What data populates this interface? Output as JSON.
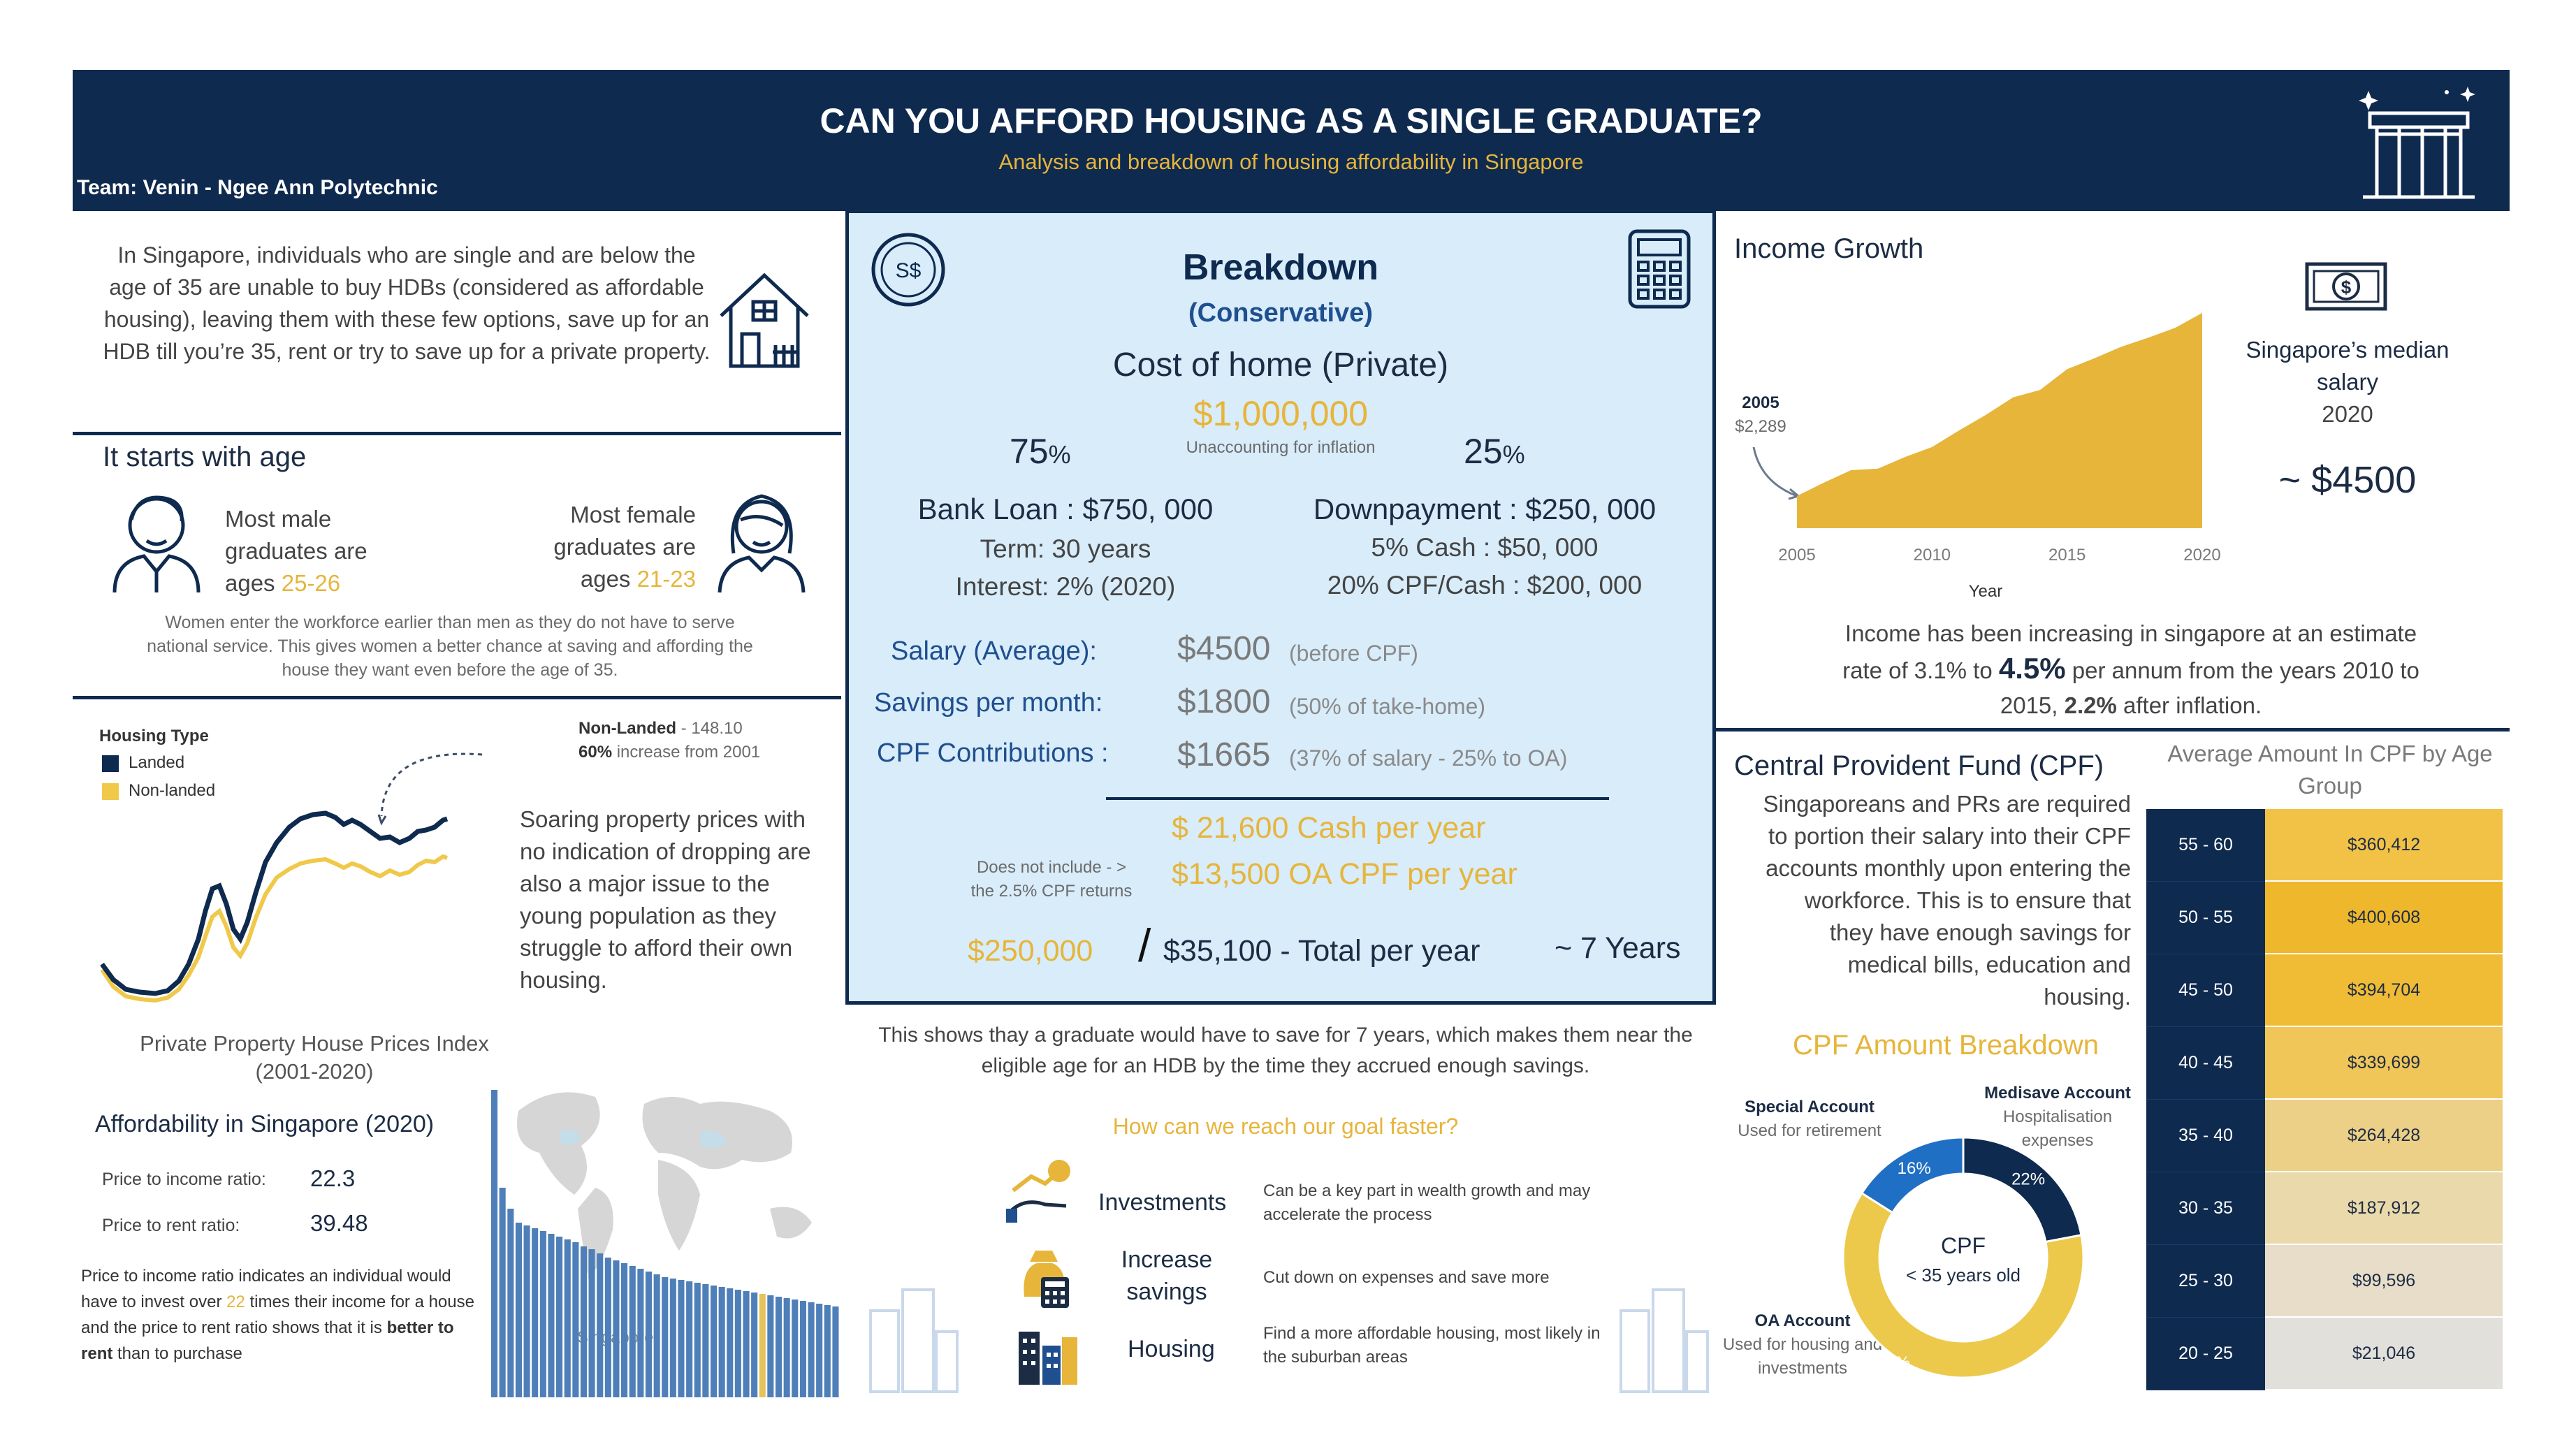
{
  "header": {
    "title": "CAN YOU AFFORD HOUSING AS A SINGLE GRADUATE?",
    "subtitle": "Analysis and breakdown of housing affordability in Singapore",
    "team": "Team: Venin - Ngee Ann Polytechnic"
  },
  "intro": {
    "text": "In Singapore, individuals who are single and are below the age of 35 are unable to buy HDBs (considered as affordable housing), leaving them with these few options, save up for an HDB till you’re 35, rent or try to save up for a private property."
  },
  "age": {
    "heading": "It starts with age",
    "male_line1": "Most male",
    "male_line2": "graduates are",
    "male_line3_prefix": "ages ",
    "male_ages": "25-26",
    "female_line1": "Most female",
    "female_line2": "graduates are",
    "female_line3_prefix": "ages ",
    "female_ages": "21-23",
    "note": "Women enter the workforce earlier than men as they do not have to serve national service. This gives women a better chance at saving and affording the house they want even before the age of 35."
  },
  "price_index": {
    "legend_title": "Housing Type",
    "legend_landed": "Landed",
    "legend_nonlanded": "Non-landed",
    "annotation_label": "Non-Landed",
    "annotation_value": "- 148.10",
    "annotation_pct": "60%",
    "annotation_rest": " increase from 2001",
    "text": "Soaring property prices with no indication of dropping are also a major issue to the young population as they struggle to afford their own housing.",
    "caption_line1": "Private Property House Prices Index",
    "caption_line2": "(2001-2020)",
    "colors": {
      "landed": "#0f2a4f",
      "nonlanded": "#f0c84a"
    }
  },
  "affordability": {
    "heading": "Affordability in Singapore (2020)",
    "pti_label": "Price to income ratio:",
    "pti_value": "22.3",
    "ptr_label": "Price to rent ratio:",
    "ptr_value": "39.48",
    "note_part1": "Price to income ratio indicates an individual would have to invest over ",
    "note_times": "22",
    "note_part2": " times their income for a house and the price to rent ratio shows that it is ",
    "note_bold": "better to rent",
    "note_part3": " than to purchase",
    "map_label": "Singapore"
  },
  "breakdown": {
    "title": "Breakdown",
    "subtitle": "(Conservative)",
    "cost_label": "Cost of home (Private)",
    "cost_value": "$1,000,000",
    "cost_note": "Unaccounting for inflation",
    "loan_pct": "75",
    "down_pct": "25",
    "pct_sign": "%",
    "loan_title": "Bank Loan : $750, 000",
    "loan_term": "Term: 30 years",
    "loan_interest": "Interest: 2% (2020)",
    "down_title": "Downpayment : $250, 000",
    "down_cash": "5% Cash : $50, 000",
    "down_cpf": "20% CPF/Cash : $200, 000",
    "salary_label": "Salary (Average):",
    "salary_value": "$4500",
    "salary_note": "(before CPF)",
    "savings_label": "Savings per month:",
    "savings_value": "$1800",
    "savings_note": "(50% of take-home)",
    "cpf_label": "CPF Contributions :",
    "cpf_value": "$1665",
    "cpf_note": "(37% of salary - 25% to OA)",
    "cash_year": "$ 21,600 Cash per year",
    "oa_year": "$13,500 OA CPF per year",
    "returns_note1": "Does not include - >",
    "returns_note2": "the 2.5% CPF returns",
    "target": "$250,000",
    "slash": "/",
    "total_value": "$35,100",
    "total_label": " - Total per year",
    "years": "~ 7 Years",
    "icon_currency": "S$"
  },
  "conclusion": {
    "text": "This shows thay a graduate would have to save for 7 years, which makes them near the eligible age for an HDB by the time they accrued enough savings.",
    "question": "How can we reach our goal faster?",
    "items": [
      {
        "label": "Investments",
        "desc": "Can be a key part in wealth growth and may accelerate the process"
      },
      {
        "label": "Increase savings",
        "desc": "Cut down on expenses and save more"
      },
      {
        "label": "Housing",
        "desc": "Find a more affordable housing, most likely in the suburban areas"
      }
    ]
  },
  "income": {
    "heading": "Income Growth",
    "start_year": "2005",
    "start_value": "$2,289",
    "x_label": "Year",
    "median_line1": "Singapore’s median",
    "median_line2": "salary",
    "median_year": "2020",
    "median_value": "~ $4500",
    "text_part1": "Income has been increasing in singapore at an estimate rate of 3.1% to ",
    "text_big": "4.5%",
    "text_part2": " per annum from the years 2010 to 2015, ",
    "text_bold": "2.2%",
    "text_part3": " after inflation."
  },
  "chart_data": {
    "type": "area",
    "x": [
      2005,
      2006,
      2007,
      2008,
      2009,
      2010,
      2011,
      2012,
      2013,
      2014,
      2015,
      2016,
      2017,
      2018,
      2019,
      2020
    ],
    "values": [
      2289,
      2450,
      2600,
      2620,
      2760,
      2880,
      3080,
      3270,
      3480,
      3570,
      3820,
      3950,
      4090,
      4200,
      4320,
      4500
    ],
    "xlabel": "Year",
    "xticks": [
      "2005",
      "2010",
      "2015",
      "2020"
    ],
    "color": "#e6b53a"
  },
  "cpf": {
    "heading": "Central Provident Fund (CPF)",
    "text": "Singaporeans and PRs are required to portion their salary into their CPF accounts monthly upon entering the workforce. This is to ensure that they have enough savings for medical bills, education and housing.",
    "breakdown_heading": "CPF Amount Breakdown",
    "donut_center1": "CPF",
    "donut_center2": "< 35 years old",
    "segments": [
      {
        "name": "Medisave Account",
        "pct": 22,
        "label": "22%",
        "desc": "Hospitalisation expenses",
        "color": "#0f2a4f"
      },
      {
        "name": "OA Account",
        "pct": 62,
        "label": "62%",
        "desc": "Used for housing and investments",
        "color": "#ecc94b"
      },
      {
        "name": "Special Account",
        "pct": 16,
        "label": "16%",
        "desc": "Used for retirement",
        "color": "#1f6fc4"
      }
    ]
  },
  "cpf_table": {
    "heading": "Average Amount In CPF by Age Group",
    "rows": [
      {
        "age": "55 - 60",
        "amount": "$360,412",
        "color": "#f2c247"
      },
      {
        "age": "50 - 55",
        "amount": "$400,608",
        "color": "#efb72b"
      },
      {
        "age": "45 - 50",
        "amount": "$394,704",
        "color": "#f0bb35"
      },
      {
        "age": "40 - 45",
        "amount": "$339,699",
        "color": "#f1c659"
      },
      {
        "age": "35 - 40",
        "amount": "$264,428",
        "color": "#ecd087"
      },
      {
        "age": "30 - 35",
        "amount": "$187,912",
        "color": "#ead9aa"
      },
      {
        "age": "25 - 30",
        "amount": "$99,596",
        "color": "#e7ddc8"
      },
      {
        "age": "20 - 25",
        "amount": "$21,046",
        "color": "#e2e0db"
      }
    ]
  }
}
